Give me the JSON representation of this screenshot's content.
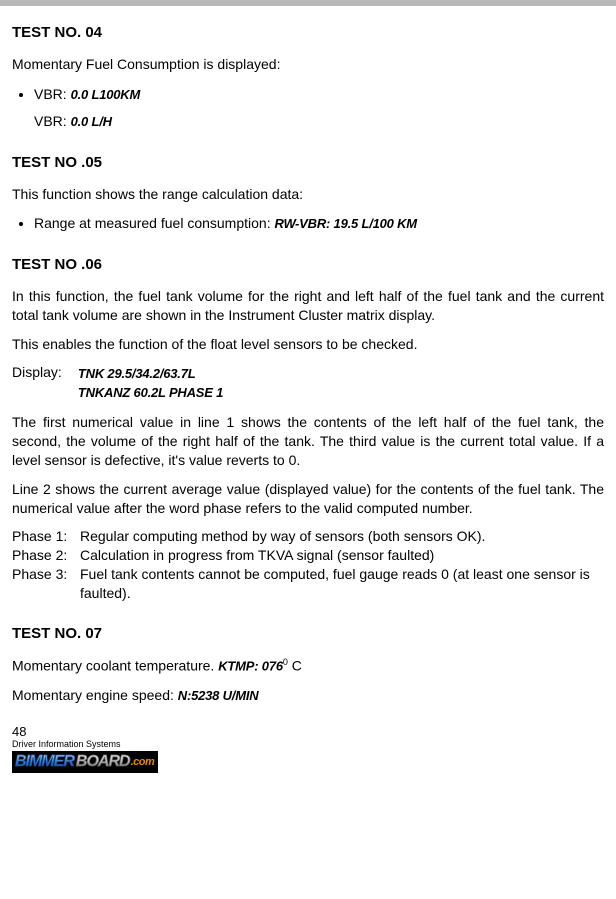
{
  "test04": {
    "title": "TEST NO. 04",
    "intro": "Momentary Fuel Consumption is displayed:",
    "vbr1_label": "VBR: ",
    "vbr1_value": "0.0 L100KM",
    "vbr2_label": "VBR: ",
    "vbr2_value": "0.0 L/H"
  },
  "test05": {
    "title": "TEST NO .05",
    "intro": "This function shows the range calculation data:",
    "range_label": "Range at measured fuel consumption: ",
    "range_value": "RW-VBR: 19.5 L/100 KM"
  },
  "test06": {
    "title": "TEST NO .06",
    "p1": "In this function, the fuel tank volume for the right and left half of the fuel tank and the current total tank volume are shown in the Instrument Cluster matrix display.",
    "p2": "This enables the function of the float level sensors to be checked.",
    "display_label": "Display:",
    "display_line1": "TNK 29.5/34.2/63.7L",
    "display_line2": "TNKANZ 60.2L PHASE 1",
    "p3": "The first numerical value in line 1 shows the contents of the left half of the fuel tank, the second, the volume of the right half of the tank.  The third value is the current total value. If a level sensor is defective, it's value reverts to 0.",
    "p4": "Line 2 shows the current average value (displayed value) for the contents of the fuel tank. The numerical value after the word phase refers to the valid computed number.",
    "phase1_label": "Phase 1:",
    "phase1_text": "Regular computing method by way of sensors (both sensors OK).",
    "phase2_label": "Phase 2:",
    "phase2_text": "Calculation in progress from TKVA signal (sensor faulted)",
    "phase3_label": "Phase 3:",
    "phase3_text": "Fuel tank contents cannot be computed, fuel gauge reads 0 (at least one sensor is faulted)."
  },
  "test07": {
    "title": "TEST NO. 07",
    "coolant_label": "Momentary coolant temperature. ",
    "coolant_value": "KTMP: 076",
    "coolant_sup": "0",
    "coolant_unit": " C",
    "speed_label": "Momentary engine speed: ",
    "speed_value": "N:5238 U/MIN"
  },
  "footer": {
    "pagenum": "48",
    "section": "Driver Information Systems",
    "wm_bimmer": "BIMMER",
    "wm_board": "BOARD",
    "wm_com": ".com"
  }
}
